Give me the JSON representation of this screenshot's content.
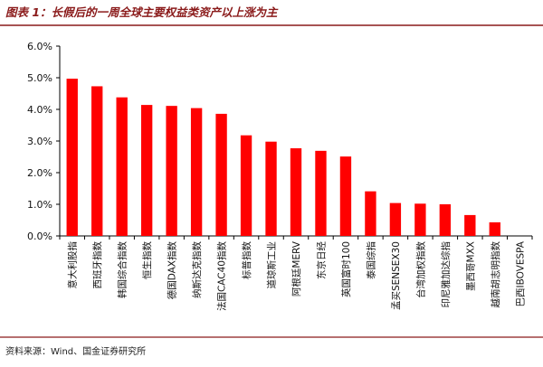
{
  "header": {
    "title": "图表 1：长假后的一周全球主要权益类资产以上涨为主"
  },
  "footer": {
    "source": "资料来源：Wind、国金证券研究所"
  },
  "colors": {
    "bar": "#ff0000",
    "title": "#8a1a1a",
    "rule": "#8a1a1a",
    "axis": "#000000"
  },
  "chart_data": {
    "type": "bar",
    "title": "",
    "xlabel": "",
    "ylabel": "",
    "ylim": [
      0,
      6
    ],
    "yticks": [
      "0.0%",
      "1.0%",
      "2.0%",
      "3.0%",
      "4.0%",
      "5.0%",
      "6.0%"
    ],
    "grid": false,
    "legend": "none",
    "categories": [
      "意大利股指",
      "西班牙指数",
      "韩国综合指数",
      "恒生指数",
      "德国DAX指数",
      "纳斯达克指数",
      "法国CAC40指数",
      "标普指数",
      "道琼斯工业",
      "阿根廷MERV",
      "东京日经",
      "英国富时100",
      "泰国综指",
      "孟买SENSEX30",
      "台湾加权指数",
      "印尼雅加达综指",
      "墨西哥MXX",
      "越南胡志明指数",
      "巴西IBOVESPA"
    ],
    "values": [
      4.97,
      4.73,
      4.38,
      4.14,
      4.11,
      4.04,
      3.86,
      3.18,
      2.98,
      2.77,
      2.69,
      2.51,
      1.41,
      1.04,
      1.02,
      1.0,
      0.66,
      0.43,
      0.0
    ]
  }
}
